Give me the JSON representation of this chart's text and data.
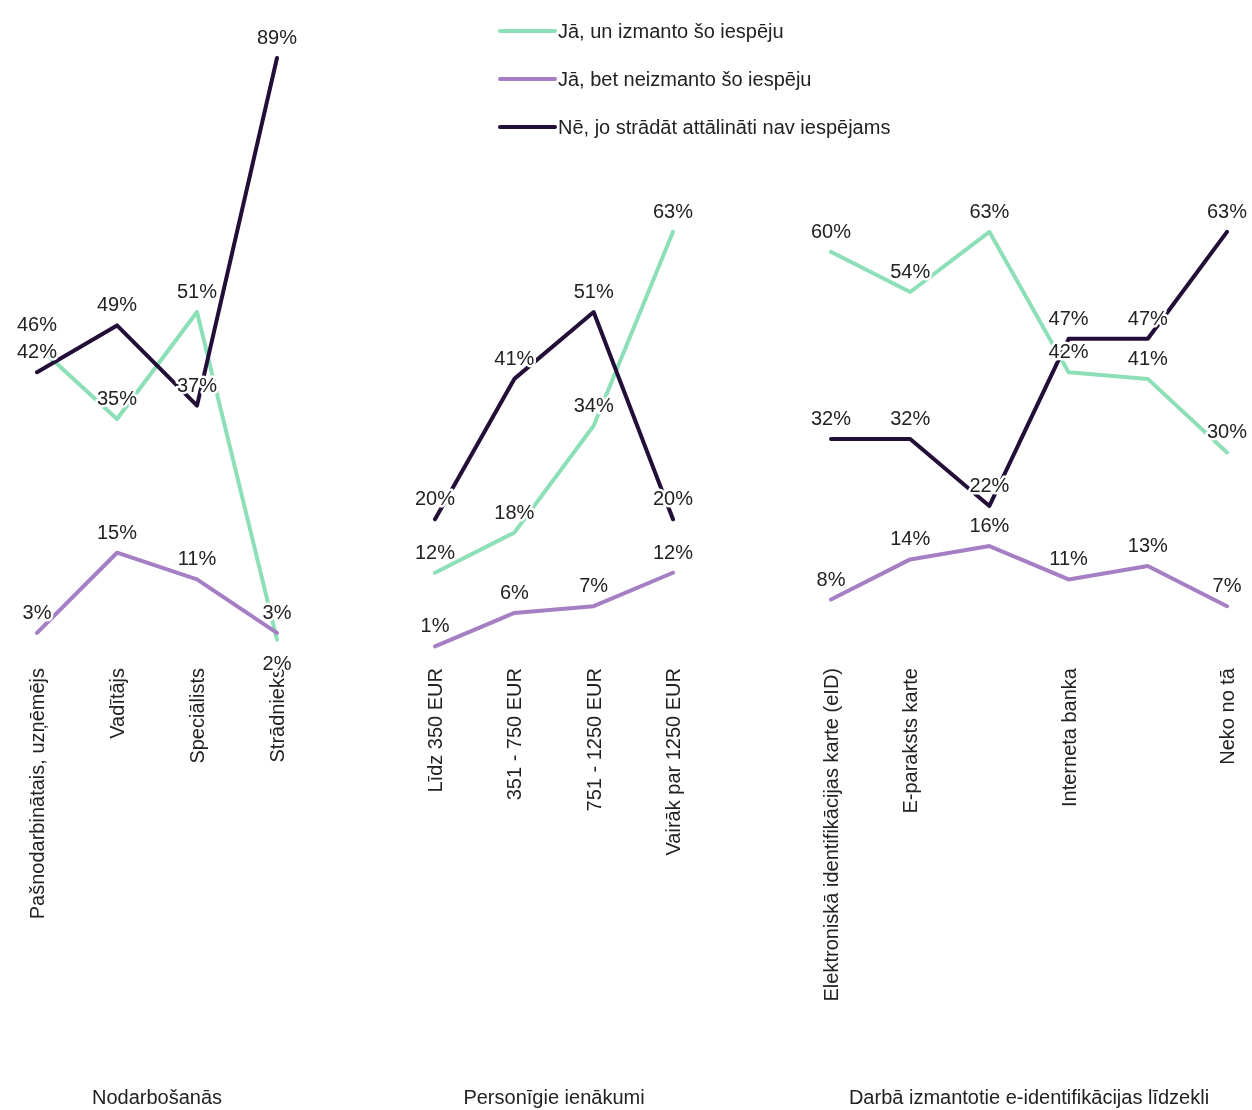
{
  "chart_data": [
    {
      "type": "line",
      "xlabel": "Nodarbošanās",
      "categories": [
        "Pašnodarbinātais, uzņēmējs",
        "Vadītājs",
        "Speciālists",
        "Strādnieks"
      ],
      "legend": false,
      "series": [
        {
          "color": "#8ddfb8",
          "values": [
            46,
            35,
            51,
            2
          ],
          "value_labels": [
            "46%",
            "35%",
            "51%",
            "2%"
          ]
        },
        {
          "color": "#a57fc3",
          "values": [
            3,
            15,
            11,
            3
          ],
          "value_labels": [
            "3%",
            "15%",
            "11%",
            "3%"
          ]
        },
        {
          "color": "#230e38",
          "values": [
            42,
            49,
            37,
            89
          ],
          "value_labels": [
            "42%",
            "49%",
            "37%",
            "89%"
          ]
        }
      ]
    },
    {
      "type": "line",
      "xlabel": "Personīgie ienākumi",
      "categories": [
        "Līdz 350 EUR",
        "351 - 750 EUR",
        "751 - 1250 EUR",
        "Vairāk par 1250 EUR"
      ],
      "legend": false,
      "series": [
        {
          "color": "#8ddfb8",
          "values": [
            12,
            18,
            34,
            63
          ],
          "value_labels": [
            "12%",
            "18%",
            "34%",
            "63%"
          ]
        },
        {
          "color": "#a57fc3",
          "values": [
            1,
            6,
            7,
            12
          ],
          "value_labels": [
            "1%",
            "6%",
            "7%",
            "12%"
          ]
        },
        {
          "color": "#230e38",
          "values": [
            20,
            41,
            51,
            20
          ],
          "value_labels": [
            "20%",
            "41%",
            "51%",
            "20%"
          ]
        }
      ]
    },
    {
      "type": "line",
      "xlabel": "Darbā izmantotie e-identifikācijas līdzekli",
      "categories": [
        "Elektroniskā identifikācijas karte (eID)",
        "E-paraksts karte",
        null,
        "Interneta banka",
        null,
        "Neko no tā"
      ],
      "legend": "top",
      "series": [
        {
          "name": "Jā, un izmanto šo iespēju",
          "color": "#8ddfb8",
          "values": [
            60,
            54,
            63,
            42,
            41,
            30
          ],
          "value_labels": [
            "60%",
            "54%",
            "63%",
            "42%",
            "41%",
            "30%"
          ]
        },
        {
          "name": "Jā, bet neizmanto šo iespēju",
          "color": "#a57fc3",
          "values": [
            8,
            14,
            16,
            11,
            13,
            7
          ],
          "value_labels": [
            "8%",
            "14%",
            "16%",
            "11%",
            "13%",
            "7%"
          ]
        },
        {
          "name": "Nē, jo strādāt attālināti nav iespējams",
          "color": "#230e38",
          "values": [
            32,
            32,
            22,
            47,
            47,
            63
          ],
          "value_labels": [
            "32%",
            "32%",
            "22%",
            "47%",
            "47%",
            "63%"
          ]
        }
      ]
    }
  ]
}
